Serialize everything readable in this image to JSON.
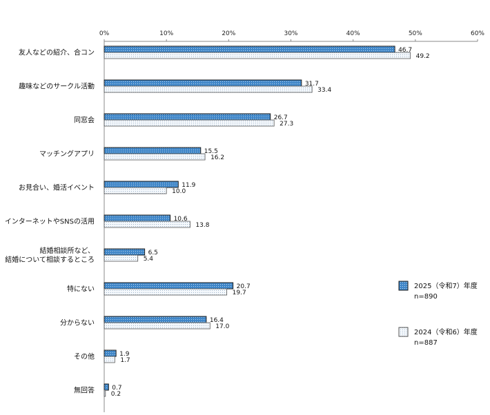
{
  "chart_data": {
    "type": "bar",
    "orientation": "horizontal",
    "categories": [
      "友人などの紹介、合コン",
      "趣味などのサークル活動",
      "同窓会",
      "マッチングアプリ",
      "お見合い、婚活イベント",
      "インターネットやSNSの活用",
      "結婚相談所など、\n結婚について相談するところ",
      "特にない",
      "分からない",
      "その他",
      "無回答"
    ],
    "series": [
      {
        "name": "2025（令和7）年度",
        "n_label": "n=890",
        "color": "#3f86c8",
        "values": [
          46.7,
          31.7,
          26.7,
          15.5,
          11.9,
          10.6,
          6.5,
          20.7,
          16.4,
          1.9,
          0.7
        ]
      },
      {
        "name": "2024（令和6）年度",
        "n_label": "n=887",
        "color": "#e8f0f8",
        "values": [
          49.2,
          33.4,
          27.3,
          16.2,
          10.0,
          13.8,
          5.4,
          19.7,
          17.0,
          1.7,
          0.2
        ]
      }
    ],
    "xlim": [
      0,
      60
    ],
    "x_ticks": [
      "0%",
      "10%",
      "20%",
      "30%",
      "40%",
      "50%",
      "60%"
    ],
    "legend_position": "right",
    "grid": false
  }
}
